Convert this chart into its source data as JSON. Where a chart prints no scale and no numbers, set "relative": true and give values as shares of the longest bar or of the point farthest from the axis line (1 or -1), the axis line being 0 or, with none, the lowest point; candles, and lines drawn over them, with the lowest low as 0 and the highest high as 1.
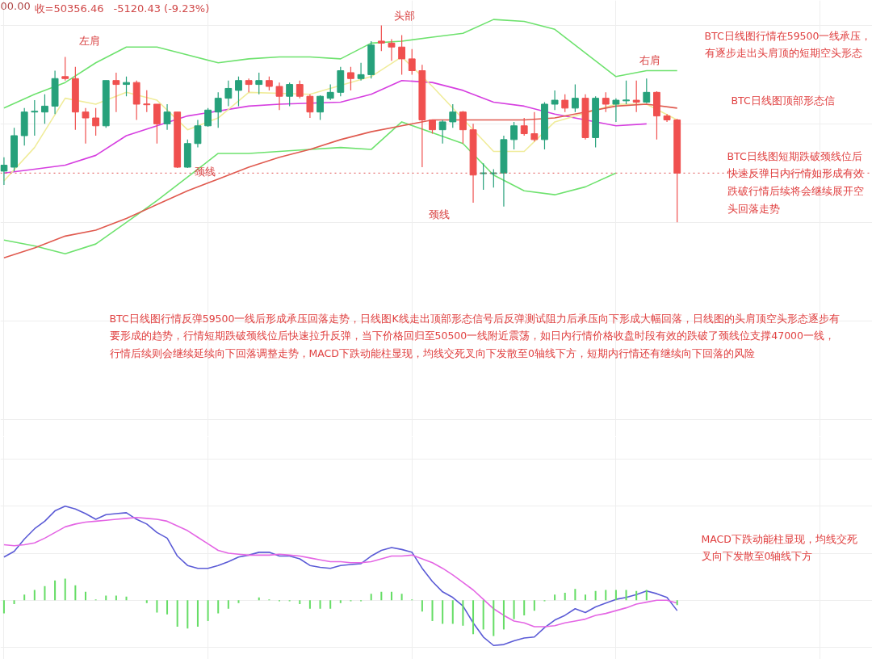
{
  "chart_data": [
    {
      "type": "candlestick",
      "relative": true,
      "grid": true,
      "categories": [
        null,
        null,
        null,
        null,
        null,
        null,
        null,
        null,
        null,
        null,
        null,
        null,
        null,
        null,
        null,
        null,
        null,
        null,
        null,
        null,
        null,
        null,
        null,
        null,
        null,
        null,
        null,
        null,
        null,
        null,
        null,
        null,
        null,
        null,
        null,
        null,
        null,
        null,
        null,
        null,
        null,
        null,
        null,
        null,
        null,
        null,
        null,
        null,
        null,
        null,
        null,
        null,
        null,
        null,
        null,
        null,
        null,
        null,
        null,
        null,
        null,
        null,
        null,
        null,
        null,
        null,
        null
      ],
      "ohlc": [
        [
          0.26,
          0.33,
          0.19,
          0.29
        ],
        [
          0.28,
          0.48,
          0.26,
          0.44
        ],
        [
          0.44,
          0.58,
          0.39,
          0.56
        ],
        [
          0.56,
          0.62,
          0.44,
          0.564
        ],
        [
          0.56,
          0.65,
          0.5,
          0.59
        ],
        [
          0.59,
          0.77,
          0.55,
          0.73
        ],
        [
          0.74,
          0.84,
          0.72,
          0.73
        ],
        [
          0.73,
          0.79,
          0.47,
          0.56
        ],
        [
          0.56,
          0.58,
          0.4,
          0.53
        ],
        [
          0.53,
          0.58,
          0.44,
          0.49
        ],
        [
          0.49,
          0.72,
          0.48,
          0.72
        ],
        [
          0.72,
          0.76,
          0.56,
          0.7
        ],
        [
          0.7,
          0.74,
          0.64,
          0.71
        ],
        [
          0.71,
          0.72,
          0.52,
          0.6
        ],
        [
          0.601,
          0.671,
          0.56,
          0.597
        ],
        [
          0.6,
          0.6,
          0.4,
          0.5
        ],
        [
          0.5,
          0.6,
          0.47,
          0.56
        ],
        [
          0.56,
          0.56,
          0.276,
          0.28
        ],
        [
          0.28,
          0.42,
          0.276,
          0.4
        ],
        [
          0.4,
          0.52,
          0.38,
          0.49
        ],
        [
          0.49,
          0.58,
          0.485,
          0.57
        ],
        [
          0.56,
          0.66,
          0.48,
          0.63
        ],
        [
          0.63,
          0.72,
          0.59,
          0.68
        ],
        [
          0.67,
          0.74,
          0.59,
          0.72
        ],
        [
          0.72,
          0.73,
          0.66,
          0.7
        ],
        [
          0.7,
          0.76,
          0.65,
          0.72
        ],
        [
          0.72,
          0.74,
          0.67,
          0.69
        ],
        [
          0.69,
          0.71,
          0.57,
          0.64
        ],
        [
          0.64,
          0.71,
          0.59,
          0.7
        ],
        [
          0.7,
          0.72,
          0.63,
          0.64
        ],
        [
          0.64,
          0.65,
          0.53,
          0.56
        ],
        [
          0.56,
          0.645,
          0.52,
          0.64
        ],
        [
          0.63,
          0.7,
          0.62,
          0.66
        ],
        [
          0.66,
          0.79,
          0.64,
          0.77
        ],
        [
          0.76,
          0.79,
          0.67,
          0.73
        ],
        [
          0.73,
          0.81,
          0.72,
          0.75
        ],
        [
          0.75,
          0.92,
          0.73,
          0.9
        ],
        [
          0.92,
          1,
          0.87,
          0.91
        ],
        [
          0.91,
          0.93,
          0.82,
          0.89
        ],
        [
          0.89,
          0.95,
          0.75,
          0.83
        ],
        [
          0.83,
          0.88,
          0.75,
          0.77
        ],
        [
          0.77,
          0.8,
          0.28,
          0.52
        ],
        [
          0.52,
          0.52,
          0.45,
          0.47
        ],
        [
          0.47,
          0.52,
          0.4,
          0.51
        ],
        [
          0.51,
          0.6,
          0.48,
          0.56
        ],
        [
          0.56,
          0.565,
          0.4,
          0.47
        ],
        [
          0.47,
          0.5,
          0.1,
          0.24
        ],
        [
          0.247,
          0.3,
          0.165,
          0.251
        ],
        [
          0.247,
          0.27,
          0.177,
          0.251
        ],
        [
          0.25,
          0.44,
          0.08,
          0.42
        ],
        [
          0.42,
          0.51,
          0.37,
          0.49
        ],
        [
          0.49,
          0.53,
          0.44,
          0.45
        ],
        [
          0.45,
          0.56,
          0.41,
          0.42
        ],
        [
          0.42,
          0.61,
          0.37,
          0.6
        ],
        [
          0.6,
          0.67,
          0.57,
          0.62
        ],
        [
          0.62,
          0.65,
          0.56,
          0.58
        ],
        [
          0.58,
          0.7,
          0.56,
          0.63
        ],
        [
          0.63,
          0.65,
          0.42,
          0.43
        ],
        [
          0.43,
          0.64,
          0.38,
          0.63
        ],
        [
          0.63,
          0.66,
          0.56,
          0.6
        ],
        [
          0.6,
          0.63,
          0.51,
          0.62
        ],
        [
          0.617,
          0.72,
          0.6,
          0.621
        ],
        [
          0.62,
          0.72,
          0.56,
          0.61
        ],
        [
          0.61,
          0.73,
          0.605,
          0.66
        ],
        [
          0.66,
          0.665,
          0.42,
          0.54
        ],
        [
          0.54,
          0.55,
          0.51,
          0.52
        ],
        [
          0.52,
          0.525,
          0,
          0.25
        ]
      ],
      "series": [
        {
          "type": "line",
          "color": "#d63fe0",
          "values": [
            0.25,
            null,
            null,
            0.27,
            null,
            null,
            0.29,
            null,
            null,
            0.34,
            null,
            null,
            0.44,
            null,
            null,
            null,
            null,
            null,
            0.54,
            null,
            null,
            null,
            null,
            null,
            0.59,
            null,
            null,
            0.6,
            null,
            null,
            null,
            null,
            null,
            0.61,
            null,
            null,
            0.65,
            null,
            null,
            0.72,
            null,
            null,
            0.71,
            null,
            null,
            0.67,
            null,
            null,
            0.61,
            null,
            null,
            0.59,
            null,
            null,
            0.55,
            null,
            null,
            null,
            null,
            null,
            0.49,
            null,
            null,
            0.5,
            null,
            null,
            null
          ]
        },
        {
          "type": "line",
          "color": "#6ee26e",
          "values": [
            0.58,
            null,
            null,
            0.65,
            null,
            null,
            0.71,
            null,
            null,
            0.81,
            null,
            null,
            0.89,
            null,
            null,
            0.89,
            null,
            null,
            0.85,
            null,
            null,
            0.81,
            null,
            null,
            0.83,
            null,
            null,
            0.84,
            null,
            null,
            0.84,
            null,
            null,
            0.83,
            null,
            null,
            0.91,
            null,
            null,
            0.92,
            null,
            null,
            0.94,
            null,
            null,
            0.96,
            null,
            null,
            1.03,
            null,
            null,
            1.02,
            null,
            null,
            0.98,
            null,
            null,
            0.86,
            null,
            null,
            0.74,
            null,
            null,
            0.77,
            null,
            null,
            0.77
          ]
        },
        {
          "type": "line",
          "color": "#6ee26e",
          "values": [
            -0.09,
            null,
            null,
            -0.12,
            null,
            null,
            -0.16,
            null,
            null,
            -0.11,
            null,
            null,
            0.0,
            null,
            null,
            0.11,
            null,
            null,
            null,
            null,
            null,
            0.35,
            null,
            null,
            0.35,
            null,
            null,
            0.36,
            null,
            null,
            0.37,
            null,
            null,
            0.38,
            null,
            null,
            0.37,
            null,
            null,
            0.51,
            null,
            null,
            null,
            null,
            null,
            0.4,
            null,
            null,
            0.24,
            null,
            null,
            0.16,
            null,
            null,
            0.14,
            null,
            null,
            0.18,
            null,
            null,
            0.25,
            null,
            null,
            null,
            null,
            null,
            null
          ]
        },
        {
          "type": "line",
          "color": "#f0ec9a",
          "values": [
            0.21,
            null,
            null,
            0.38,
            null,
            null,
            0.63,
            null,
            null,
            0.6,
            null,
            null,
            0.66,
            null,
            null,
            0.62,
            null,
            null,
            0.47,
            null,
            null,
            0.53,
            null,
            null,
            0.66,
            null,
            null,
            null,
            null,
            null,
            0.65,
            null,
            null,
            null,
            null,
            null,
            0.74,
            null,
            null,
            0.84,
            null,
            null,
            0.69,
            null,
            null,
            null,
            null,
            null,
            0.36,
            null,
            null,
            0.36,
            null,
            null,
            0.51,
            null,
            null,
            null,
            null,
            null,
            0.6,
            null,
            null,
            0.6,
            null,
            null,
            0.52
          ]
        },
        {
          "type": "line",
          "color": "#e05a4f",
          "values": [
            -0.18,
            null,
            null,
            -0.13,
            null,
            null,
            -0.07,
            null,
            null,
            -0.04,
            null,
            null,
            0.02,
            null,
            null,
            0.09,
            null,
            null,
            0.16,
            null,
            null,
            0.22,
            null,
            null,
            0.28,
            null,
            null,
            0.33,
            null,
            null,
            0.37,
            null,
            null,
            0.42,
            null,
            null,
            0.46,
            null,
            null,
            0.49,
            null,
            null,
            0.52,
            null,
            null,
            0.52,
            null,
            null,
            0.52,
            null,
            null,
            0.52,
            null,
            null,
            0.53,
            null,
            null,
            0.56,
            null,
            null,
            0.59,
            null,
            null,
            0.6,
            null,
            null,
            0.58
          ]
        }
      ],
      "ref_lines": [
        {
          "axis": "y",
          "value": 0.25,
          "color": "#e05050",
          "line_style": "dotted"
        }
      ],
      "annotations": [
        "00.00",
        "收=50356.46",
        "-5120.43 (-9.23%)",
        "左肩",
        "头部",
        "右肩",
        "颈线",
        "颈线",
        "BTC日线图行情在59500一线承压，有逐步走出头肩顶的短期空头形态",
        "BTC日线图顶部形态信",
        "BTC日线图短期跌破颈线位后快速反弹日内行情如形成有效跌破行情后续将会继续展开空头回落走势",
        "BTC日线图行情反弹59500一线后形成承压回落走势，日线图K线走出顶部形态信号后反弹测试阻力后承压向下形成大幅回落，日线图的头肩顶空头形态逐步有要形成的趋势，行情短期跌破颈线位后快速拉升反弹，当下价格回归至50500一线附近震荡，如日内行情价格收盘时段有效的跌破了颈线位支撑47000一线，行情后续则会继续延续向下回落调整走势，MACD下跌动能柱显现，均线交死叉向下发散至0轴线下方，短期内行情还有继续向下回落的风险"
      ]
    },
    {
      "type": "line",
      "relative": true,
      "grid": true,
      "categories": [
        null,
        null,
        null,
        null,
        null,
        null,
        null,
        null,
        null,
        null,
        null,
        null,
        null,
        null,
        null,
        null,
        null,
        null,
        null,
        null,
        null,
        null,
        null,
        null,
        null,
        null,
        null,
        null,
        null,
        null,
        null,
        null,
        null,
        null,
        null,
        null,
        null,
        null,
        null,
        null,
        null,
        null,
        null,
        null,
        null,
        null,
        null,
        null,
        null,
        null,
        null,
        null,
        null,
        null,
        null,
        null,
        null,
        null,
        null,
        null,
        null,
        null,
        null,
        null,
        null,
        null,
        null
      ],
      "series": [
        {
          "type": "bar",
          "color": "#66dd66",
          "values": [
            -0.14,
            -0.04,
            0.06,
            0.11,
            0.15,
            0.21,
            0.23,
            0.16,
            0.09,
            0.01,
            0.05,
            0.05,
            0.04,
            0,
            -0.03,
            -0.13,
            -0.15,
            -0.28,
            -0.3,
            -0.28,
            -0.22,
            -0.14,
            -0.09,
            -0.03,
            0,
            0.03,
            0.01,
            -0.01,
            -0.01,
            -0.04,
            -0.09,
            -0.09,
            -0.09,
            -0.03,
            -0.01,
            -0.01,
            0.07,
            0.09,
            0.09,
            0.07,
            0.01,
            -0.12,
            -0.22,
            -0.25,
            -0.25,
            -0.27,
            -0.36,
            -0.31,
            -0.38,
            -0.31,
            -0.2,
            -0.16,
            -0.11,
            -0.01,
            0.06,
            0.08,
            0.12,
            0.06,
            0.1,
            0.11,
            0.11,
            0.11,
            0.1,
            0.11,
            null,
            null,
            -0.05
          ]
        },
        {
          "type": "line",
          "color": "#5b5bd6",
          "values": [
            0.46,
            0.52,
            0.65,
            0.76,
            0.84,
            0.95,
            1.0,
            0.97,
            0.92,
            0.86,
            0.91,
            0.92,
            0.93,
            0.86,
            0.81,
            0.72,
            0.66,
            0.47,
            0.37,
            0.34,
            0.34,
            0.37,
            0.41,
            0.46,
            0.48,
            0.51,
            0.51,
            0.47,
            0.47,
            0.44,
            0.37,
            0.35,
            0.34,
            0.37,
            0.38,
            0.39,
            0.47,
            0.53,
            0.56,
            0.54,
            0.51,
            0.34,
            0.2,
            0.09,
            0.03,
            -0.06,
            -0.24,
            -0.39,
            -0.48,
            -0.47,
            -0.43,
            -0.4,
            -0.39,
            -0.29,
            -0.21,
            -0.16,
            -0.09,
            -0.13,
            -0.07,
            -0.03,
            0.01,
            0.03,
            0.06,
            0.1,
            0.07,
            0.03,
            -0.11
          ]
        },
        {
          "type": "line",
          "color": "#e466e4",
          "values": [
            0.59,
            0.58,
            0.59,
            0.61,
            0.66,
            0.72,
            0.78,
            0.81,
            0.83,
            0.84,
            0.85,
            0.86,
            0.87,
            0.88,
            0.87,
            0.86,
            0.84,
            0.79,
            0.74,
            0.67,
            0.6,
            0.53,
            0.5,
            0.49,
            0.48,
            0.48,
            0.48,
            0.49,
            0.48,
            0.47,
            0.45,
            0.43,
            0.41,
            0.41,
            0.4,
            0.4,
            0.41,
            0.44,
            0.47,
            0.47,
            0.48,
            0.44,
            0.4,
            0.34,
            0.27,
            0.19,
            0.11,
            0.01,
            -0.09,
            -0.16,
            -0.22,
            -0.24,
            -0.28,
            -0.28,
            -0.27,
            -0.24,
            -0.22,
            -0.2,
            -0.16,
            -0.14,
            -0.11,
            -0.08,
            -0.04,
            -0.02,
            0,
            0,
            -0.03
          ]
        }
      ],
      "annotations": [
        "MACD下跌动能柱显现，均线交死叉向下发散至0轴线下方"
      ]
    }
  ]
}
